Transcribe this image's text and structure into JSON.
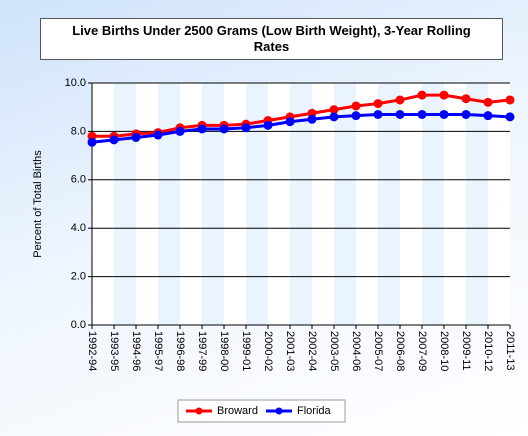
{
  "chart_data": {
    "type": "line",
    "title": "Live Births Under 2500 Grams (Low Birth Weight), 3-Year Rolling Rates",
    "y_label": "Percent of Total Births",
    "categories": [
      "1992-94",
      "1993-95",
      "1994-96",
      "1995-97",
      "1996-98",
      "1997-99",
      "1998-00",
      "1999-01",
      "2000-02",
      "2001-03",
      "2002-04",
      "2003-05",
      "2004-06",
      "2005-07",
      "2006-08",
      "2007-09",
      "2008-10",
      "2009-11",
      "2010-12",
      "2011-13"
    ],
    "series": [
      {
        "name": "Broward",
        "color": "#ff0000",
        "values": [
          7.8,
          7.8,
          7.9,
          7.95,
          8.15,
          8.25,
          8.25,
          8.3,
          8.45,
          8.6,
          8.75,
          8.9,
          9.05,
          9.15,
          9.3,
          9.5,
          9.5,
          9.35,
          9.2,
          9.3
        ]
      },
      {
        "name": "Florida",
        "color": "#0000ff",
        "values": [
          7.55,
          7.65,
          7.75,
          7.85,
          8.0,
          8.1,
          8.1,
          8.15,
          8.25,
          8.4,
          8.5,
          8.6,
          8.65,
          8.7,
          8.7,
          8.7,
          8.7,
          8.7,
          8.65,
          8.6
        ]
      }
    ],
    "ylim": [
      0,
      10
    ],
    "yticks": [
      {
        "value": 0,
        "label": "0.0"
      },
      {
        "value": 2,
        "label": "2.0"
      },
      {
        "value": 4,
        "label": "4.0"
      },
      {
        "value": 6,
        "label": "6.0"
      },
      {
        "value": 8,
        "label": "8.0"
      },
      {
        "value": 10,
        "label": "10.0"
      }
    ],
    "grid": true,
    "legend": "bottom"
  }
}
